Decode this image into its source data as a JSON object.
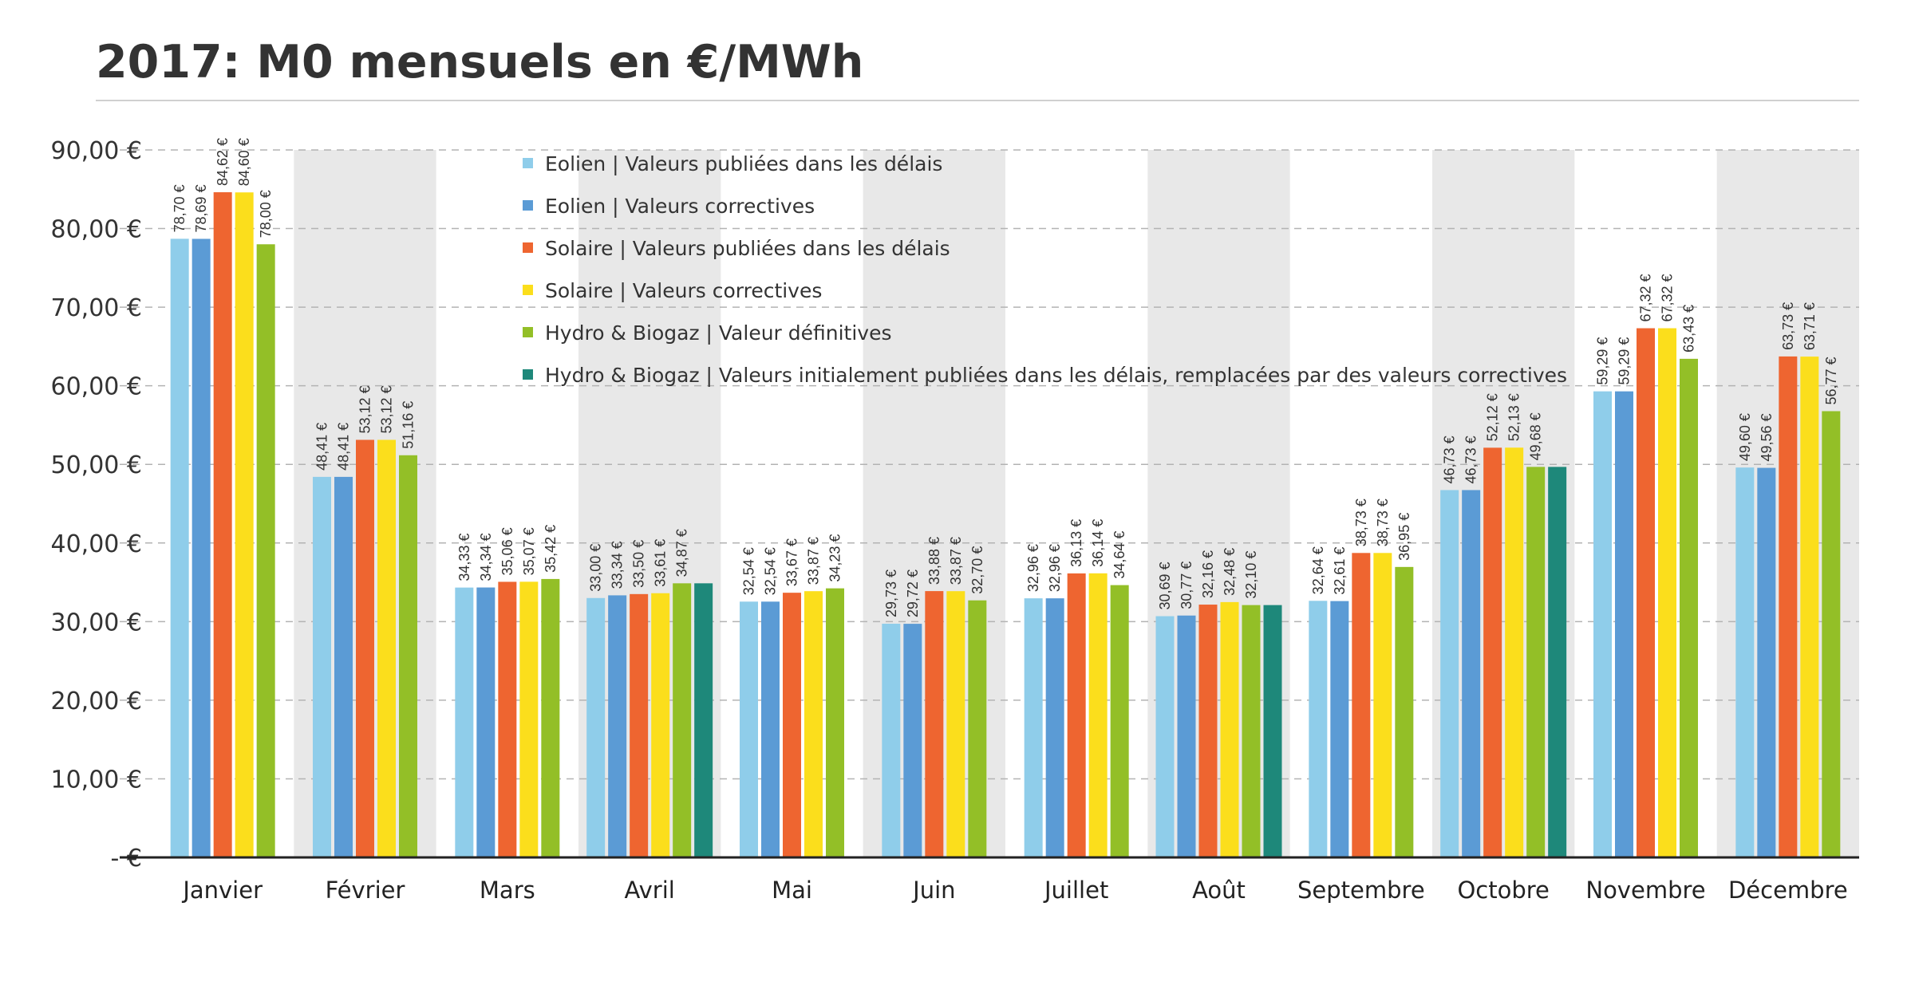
{
  "chart_data": {
    "type": "bar",
    "title": "2017: M0 mensuels en  €/MWh",
    "xlabel": "",
    "ylabel": "",
    "ylim": [
      0,
      90
    ],
    "yticks": [
      {
        "value": 90,
        "label": "90,00 €"
      },
      {
        "value": 80,
        "label": "80,00 €"
      },
      {
        "value": 70,
        "label": "70,00 €"
      },
      {
        "value": 60,
        "label": "60,00 €"
      },
      {
        "value": 50,
        "label": "50,00 €"
      },
      {
        "value": 40,
        "label": "40,00 €"
      },
      {
        "value": 30,
        "label": "30,00 €"
      },
      {
        "value": 20,
        "label": "20,00 €"
      },
      {
        "value": 10,
        "label": "10,00 €"
      },
      {
        "value": 0,
        "label": "- €"
      }
    ],
    "grid": true,
    "legend_position": "top-center",
    "categories": [
      "Janvier",
      "Février",
      "Mars",
      "Avril",
      "Mai",
      "Juin",
      "Juillet",
      "Août",
      "Septembre",
      "Octobre",
      "Novembre",
      "Décembre"
    ],
    "series": [
      {
        "name": "Eolien | Valeurs publiées dans les délais",
        "color": "#8fcdea",
        "values": [
          78.7,
          48.41,
          34.33,
          33.0,
          32.54,
          29.73,
          32.96,
          30.69,
          32.64,
          46.73,
          59.29,
          49.6
        ],
        "labels": [
          "78,70 €",
          "48,41 €",
          "34,33 €",
          "33,00 €",
          "32,54 €",
          "29,73 €",
          "32,96 €",
          "30,69 €",
          "32,64 €",
          "46,73 €",
          "59,29 €",
          "49,60 €"
        ]
      },
      {
        "name": "Eolien | Valeurs correctives",
        "color": "#5b9bd5",
        "values": [
          78.69,
          48.41,
          34.34,
          33.34,
          32.54,
          29.72,
          32.96,
          30.77,
          32.61,
          46.73,
          59.29,
          49.56
        ],
        "labels": [
          "78,69 €",
          "48,41 €",
          "34,34 €",
          "33,34 €",
          "32,54 €",
          "29,72 €",
          "32,96 €",
          "30,77 €",
          "32,61 €",
          "46,73 €",
          "59,29 €",
          "49,56 €"
        ]
      },
      {
        "name": "Solaire | Valeurs publiées dans les délais",
        "color": "#ee6530",
        "values": [
          84.62,
          53.12,
          35.06,
          33.5,
          33.67,
          33.88,
          36.13,
          32.16,
          38.73,
          52.12,
          67.32,
          63.73
        ],
        "labels": [
          "84,62 €",
          "53,12 €",
          "35,06 €",
          "33,50 €",
          "33,67 €",
          "33,88 €",
          "36,13 €",
          "32,16 €",
          "38,73 €",
          "52,12 €",
          "67,32 €",
          "63,73 €"
        ]
      },
      {
        "name": "Solaire | Valeurs correctives",
        "color": "#fbde1c",
        "values": [
          84.6,
          53.12,
          35.07,
          33.61,
          33.87,
          33.87,
          36.14,
          32.48,
          38.73,
          52.13,
          67.32,
          63.71
        ],
        "labels": [
          "84,60 €",
          "53,12 €",
          "35,07 €",
          "33,61 €",
          "33,87 €",
          "33,87 €",
          "36,14 €",
          "32,48 €",
          "38,73 €",
          "52,13 €",
          "67,32 €",
          "63,71 €"
        ]
      },
      {
        "name": "Hydro & Biogaz | Valeur définitives",
        "color": "#93bf27",
        "values": [
          78.0,
          51.16,
          35.42,
          34.87,
          34.23,
          32.7,
          34.64,
          32.1,
          36.95,
          49.68,
          63.43,
          56.77
        ],
        "labels": [
          "78,00 €",
          "51,16 €",
          "35,42 €",
          "34,87 €",
          "34,23 €",
          "32,70 €",
          "34,64 €",
          "32,10 €",
          "36,95 €",
          "49,68 €",
          "63,43 €",
          "56,77 €"
        ]
      },
      {
        "name": "Hydro & Biogaz | Valeurs initialement publiées dans les délais, remplacées par des valeurs correctives",
        "color": "#1e887a",
        "values": [
          null,
          null,
          null,
          34.87,
          null,
          null,
          null,
          32.1,
          null,
          49.68,
          null,
          null
        ],
        "labels": [
          null,
          null,
          null,
          null,
          null,
          null,
          null,
          null,
          null,
          null,
          null,
          null
        ]
      }
    ]
  }
}
